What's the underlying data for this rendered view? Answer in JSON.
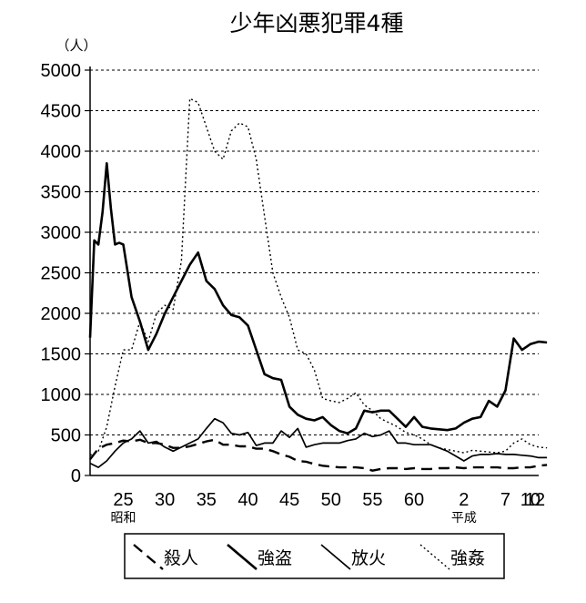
{
  "chart_data": {
    "type": "line",
    "title": "少年凶悪犯罪4種",
    "ylabel": "（人）",
    "ylim": [
      0,
      5000
    ],
    "yticks": [
      0,
      500,
      1000,
      1500,
      2000,
      2500,
      3000,
      3500,
      4000,
      4500,
      5000
    ],
    "x_start": 21,
    "x_end": 75,
    "xtick_values": [
      25,
      30,
      35,
      40,
      45,
      50,
      55,
      60,
      66,
      71,
      74,
      76
    ],
    "xticks": [
      "25",
      "30",
      "35",
      "40",
      "45",
      "50",
      "55",
      "60",
      "2",
      "7",
      "10",
      "12"
    ],
    "era_labels": [
      {
        "text": "昭和",
        "at": 25
      },
      {
        "text": "平成",
        "at": 66
      }
    ],
    "grid": true,
    "legend_position": "bottom",
    "series": [
      {
        "name": "殺人",
        "style": "dashed",
        "x": [
          21,
          22,
          23,
          24,
          25,
          26,
          27,
          28,
          29,
          30,
          31,
          32,
          33,
          34,
          35,
          36,
          37,
          38,
          39,
          40,
          41,
          42,
          43,
          44,
          45,
          46,
          47,
          48,
          49,
          50,
          51,
          52,
          53,
          54,
          55,
          56,
          57,
          58,
          59,
          60,
          61,
          62,
          63,
          64,
          65,
          66,
          67,
          68,
          69,
          70,
          71,
          72,
          73,
          74,
          75,
          76
        ],
        "values": [
          200,
          330,
          380,
          400,
          430,
          420,
          440,
          400,
          400,
          380,
          340,
          340,
          360,
          390,
          420,
          440,
          380,
          380,
          360,
          360,
          330,
          330,
          300,
          260,
          230,
          180,
          170,
          140,
          120,
          110,
          100,
          100,
          100,
          90,
          60,
          80,
          90,
          90,
          80,
          90,
          80,
          80,
          90,
          90,
          100,
          90,
          100,
          100,
          100,
          100,
          90,
          90,
          100,
          100,
          120,
          130
        ]
      },
      {
        "name": "強盗",
        "style": "solid-thick",
        "x": [
          21,
          21.5,
          22,
          22.5,
          23,
          23.5,
          24,
          24.5,
          25,
          26,
          27,
          28,
          29,
          30,
          31,
          32,
          33,
          34,
          35,
          36,
          37,
          38,
          39,
          40,
          41,
          42,
          43,
          44,
          45,
          46,
          47,
          48,
          49,
          50,
          51,
          52,
          53,
          54,
          55,
          56,
          57,
          58,
          59,
          60,
          61,
          62,
          63,
          64,
          65,
          66,
          67,
          68,
          69,
          70,
          71,
          72,
          73,
          74,
          75,
          76
        ],
        "values": [
          1700,
          2900,
          2850,
          3250,
          3850,
          3300,
          2850,
          2870,
          2850,
          2200,
          1900,
          1550,
          1750,
          2000,
          2200,
          2400,
          2600,
          2750,
          2400,
          2300,
          2100,
          1980,
          1950,
          1850,
          1550,
          1250,
          1200,
          1180,
          850,
          750,
          700,
          680,
          720,
          620,
          550,
          520,
          580,
          800,
          780,
          800,
          800,
          700,
          600,
          720,
          600,
          580,
          570,
          560,
          580,
          650,
          700,
          720,
          920,
          850,
          1050,
          1690,
          1550,
          1620,
          1650,
          1640
        ]
      },
      {
        "name": "放火",
        "style": "solid",
        "x": [
          21,
          22,
          23,
          24,
          25,
          26,
          27,
          28,
          29,
          30,
          31,
          32,
          33,
          34,
          35,
          36,
          37,
          38,
          39,
          40,
          41,
          42,
          43,
          44,
          45,
          46,
          47,
          48,
          49,
          50,
          51,
          52,
          53,
          54,
          55,
          56,
          57,
          58,
          59,
          60,
          61,
          62,
          63,
          64,
          65,
          66,
          67,
          68,
          69,
          70,
          71,
          72,
          73,
          74,
          75,
          76
        ],
        "values": [
          150,
          100,
          180,
          300,
          400,
          450,
          550,
          400,
          420,
          350,
          300,
          350,
          400,
          450,
          580,
          700,
          650,
          520,
          500,
          530,
          370,
          400,
          400,
          550,
          470,
          580,
          350,
          380,
          400,
          400,
          400,
          430,
          450,
          520,
          480,
          500,
          550,
          400,
          400,
          380,
          380,
          380,
          340,
          300,
          240,
          180,
          240,
          260,
          260,
          270,
          260,
          260,
          250,
          240,
          220,
          220
        ]
      },
      {
        "name": "強姦",
        "style": "dotted",
        "x": [
          21,
          22,
          23,
          24,
          25,
          26,
          27,
          28,
          29,
          30,
          31,
          32,
          33,
          34,
          35,
          36,
          37,
          38,
          39,
          40,
          41,
          42,
          43,
          44,
          45,
          46,
          47,
          48,
          49,
          50,
          51,
          52,
          53,
          54,
          55,
          56,
          57,
          58,
          59,
          60,
          61,
          62,
          63,
          64,
          65,
          66,
          67,
          68,
          69,
          70,
          71,
          72,
          73,
          74,
          75,
          76
        ],
        "values": [
          250,
          300,
          600,
          1100,
          1550,
          1550,
          1900,
          1650,
          2000,
          2100,
          2050,
          2650,
          4650,
          4600,
          4300,
          4000,
          3900,
          4250,
          4350,
          4300,
          3900,
          3200,
          2500,
          2200,
          1950,
          1550,
          1500,
          1300,
          950,
          920,
          900,
          950,
          1020,
          870,
          800,
          700,
          650,
          600,
          530,
          500,
          450,
          380,
          340,
          320,
          300,
          280,
          310,
          300,
          290,
          280,
          300,
          400,
          450,
          380,
          350,
          340
        ]
      }
    ]
  }
}
